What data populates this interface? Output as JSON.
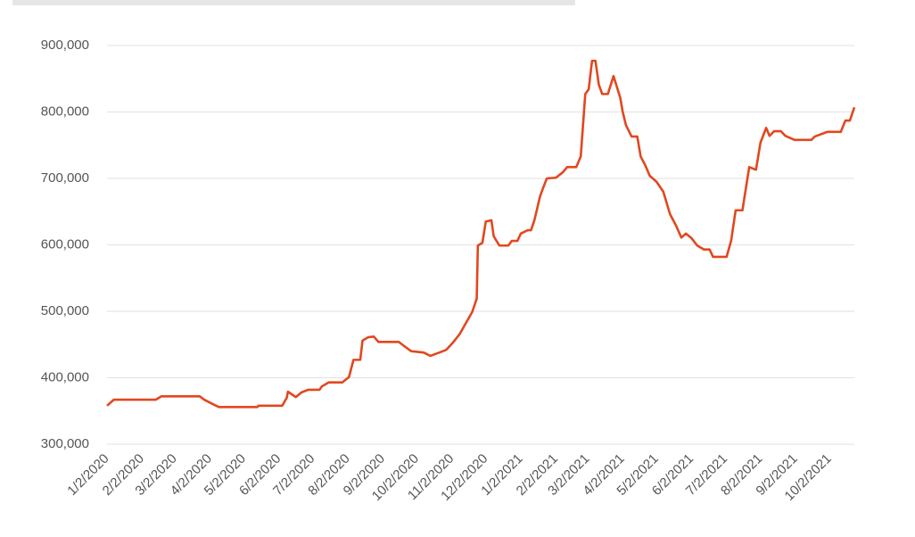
{
  "chart_data": {
    "type": "line",
    "color": "#e2471f",
    "grid": true,
    "x": [
      "1/2/2020",
      "1/8/2020",
      "2/14/2020",
      "2/19/2020",
      "3/24/2020",
      "3/28/2020",
      "4/5/2020",
      "4/10/2020",
      "5/14/2020",
      "5/15/2020",
      "6/5/2020",
      "6/9/2020",
      "6/10/2020",
      "6/17/2020",
      "6/22/2020",
      "6/28/2020",
      "7/8/2020",
      "7/10/2020",
      "7/16/2020",
      "7/28/2020",
      "8/3/2020",
      "8/7/2020",
      "8/13/2020",
      "8/15/2020",
      "8/20/2020",
      "8/25/2020",
      "8/29/2020",
      "9/16/2020",
      "9/23/2020",
      "9/27/2020",
      "10/8/2020",
      "10/14/2020",
      "10/22/2020",
      "10/28/2020",
      "11/3/2020",
      "11/9/2020",
      "11/14/2020",
      "11/20/2020",
      "11/24/2020",
      "11/25/2020",
      "11/29/2020",
      "12/2/2020",
      "12/7/2020",
      "12/9/2020",
      "12/14/2020",
      "12/22/2020",
      "12/25/2020",
      "12/30/2020",
      "1/2/2021",
      "1/8/2021",
      "1/11/2021",
      "1/14/2021",
      "1/19/2021",
      "1/22/2021",
      "1/25/2021",
      "2/2/2021",
      "2/8/2021",
      "2/12/2021",
      "2/20/2021",
      "2/24/2021",
      "2/28/2021",
      "3/3/2021",
      "3/6/2021",
      "3/9/2021",
      "3/12/2021",
      "3/15/2021",
      "3/20/2021",
      "3/25/2021",
      "3/31/2021",
      "4/2/2021",
      "4/5/2021",
      "4/10/2021",
      "4/15/2021",
      "4/18/2021",
      "4/22/2021",
      "4/26/2021",
      "5/2/2021",
      "5/8/2021",
      "5/14/2021",
      "5/19/2021",
      "5/24/2021",
      "5/28/2021",
      "6/2/2021",
      "6/7/2021",
      "6/13/2021",
      "6/18/2021",
      "6/21/2021",
      "7/3/2021",
      "7/7/2021",
      "7/11/2021",
      "7/17/2021",
      "7/23/2021",
      "7/29/2021",
      "8/2/2021",
      "8/7/2021",
      "8/10/2021",
      "8/14/2021",
      "8/20/2021",
      "8/24/2021",
      "9/1/2021",
      "9/16/2021",
      "9/19/2021",
      "9/30/2021",
      "10/12/2021",
      "10/16/2021",
      "10/20/2021",
      "10/24/2021"
    ],
    "values": [
      358000,
      367000,
      367000,
      372000,
      372000,
      367000,
      360000,
      356000,
      356000,
      358000,
      358000,
      370000,
      379000,
      371000,
      378000,
      382000,
      382000,
      387000,
      393000,
      393000,
      401000,
      427000,
      427000,
      456000,
      461000,
      462000,
      454000,
      454000,
      445000,
      440000,
      438000,
      433000,
      438000,
      442000,
      453000,
      466000,
      481000,
      499000,
      519000,
      599000,
      603000,
      635000,
      637000,
      613000,
      599000,
      599000,
      606000,
      606000,
      617000,
      622000,
      622000,
      637000,
      673000,
      687000,
      700000,
      701000,
      709000,
      717000,
      717000,
      733000,
      827000,
      834000,
      877000,
      877000,
      841000,
      827000,
      827000,
      854000,
      821000,
      801000,
      780000,
      763000,
      763000,
      733000,
      720000,
      704000,
      695000,
      680000,
      646000,
      630000,
      611000,
      617000,
      610000,
      599000,
      593000,
      593000,
      582000,
      582000,
      606000,
      652000,
      652000,
      717000,
      713000,
      754000,
      776000,
      764000,
      771000,
      771000,
      764000,
      758000,
      758000,
      763000,
      770000,
      770000,
      787000,
      787000,
      807000
    ],
    "xlim": [
      "1/2/2020",
      "10/24/2021"
    ],
    "xticks": [
      "1/2/2020",
      "2/2/2020",
      "3/2/2020",
      "4/2/2020",
      "5/2/2020",
      "6/2/2020",
      "7/2/2020",
      "8/2/2020",
      "9/2/2020",
      "10/2/2020",
      "11/2/2020",
      "12/2/2020",
      "1/2/2021",
      "2/2/2021",
      "3/2/2021",
      "4/2/2021",
      "5/2/2021",
      "6/2/2021",
      "7/2/2021",
      "8/2/2021",
      "9/2/2021",
      "10/2/2021"
    ],
    "ylim": [
      300000,
      900000
    ],
    "yticks": [
      {
        "value": 300000,
        "label": "300,000"
      },
      {
        "value": 400000,
        "label": "400,000"
      },
      {
        "value": 500000,
        "label": "500,000"
      },
      {
        "value": 600000,
        "label": "600,000"
      },
      {
        "value": 700000,
        "label": "700,000"
      },
      {
        "value": 800000,
        "label": "800,000"
      },
      {
        "value": 900000,
        "label": "900,000"
      }
    ]
  }
}
